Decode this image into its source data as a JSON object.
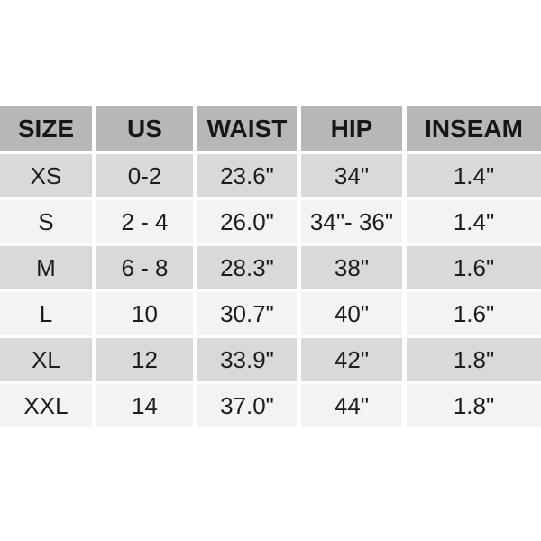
{
  "chart_data": {
    "type": "table",
    "columns": [
      "SIZE",
      "US",
      "WAIST",
      "HIP",
      "INSEAM"
    ],
    "rows": [
      [
        "XS",
        "0-2",
        "23.6\"",
        "34\"",
        "1.4\""
      ],
      [
        "S",
        "2 - 4",
        "26.0\"",
        "34\"- 36\"",
        "1.4\""
      ],
      [
        "M",
        "6 - 8",
        "28.3\"",
        "38\"",
        "1.6\""
      ],
      [
        "L",
        "10",
        "30.7\"",
        "40\"",
        "1.6\""
      ],
      [
        "XL",
        "12",
        "33.9\"",
        "42\"",
        "1.8\""
      ],
      [
        "XXL",
        "14",
        "37.0\"",
        "44\"",
        "1.8\""
      ]
    ],
    "layout": {
      "legend": "none",
      "grid": "white separators between cells",
      "zebra_striping": true
    }
  },
  "colors": {
    "header_bg": "#b7b7b7",
    "row_odd_bg": "#d9d9d9",
    "row_even_bg": "#f3f3f3",
    "separator": "#ffffff",
    "text": "#1c1c1c",
    "page_bg": "#ffffff"
  }
}
